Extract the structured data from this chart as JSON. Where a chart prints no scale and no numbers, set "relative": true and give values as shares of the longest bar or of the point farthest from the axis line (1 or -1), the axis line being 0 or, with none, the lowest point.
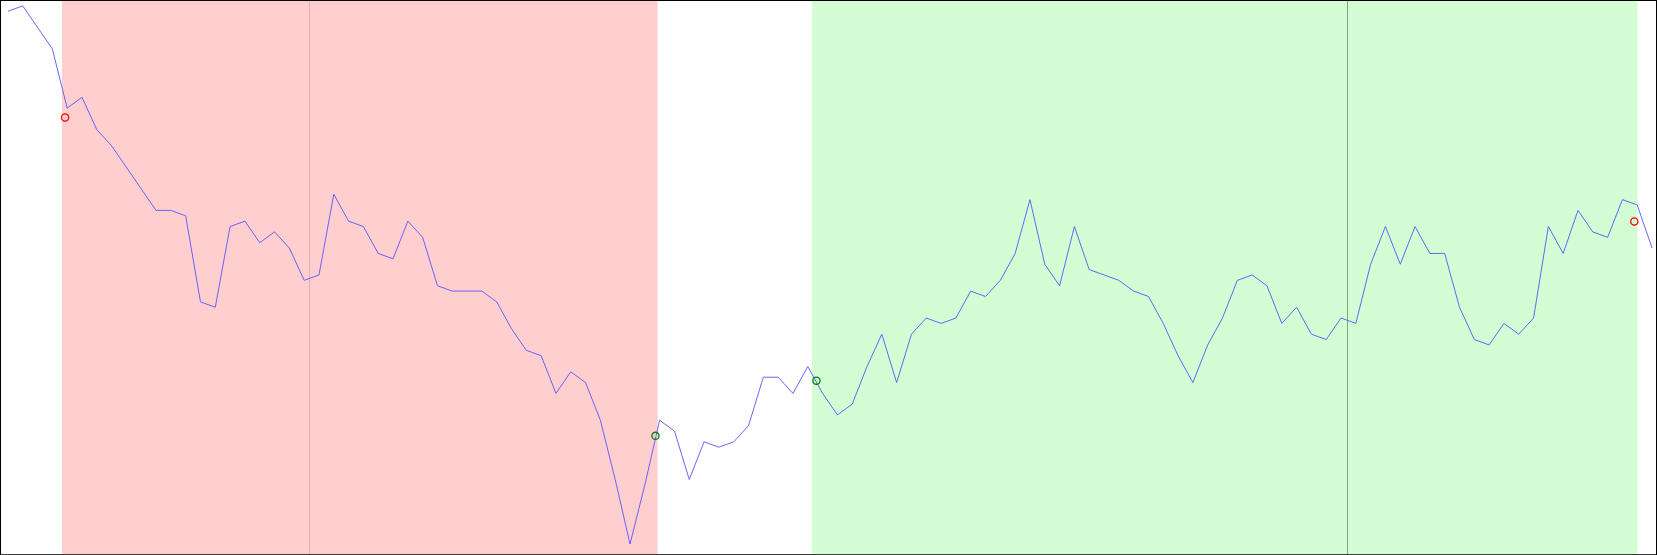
{
  "chart_data": {
    "type": "line",
    "relative": true,
    "categories": [
      null,
      null,
      null,
      null,
      null,
      null,
      null,
      null,
      null,
      null,
      null,
      null,
      null,
      null,
      null,
      null,
      null,
      null,
      null,
      null,
      null,
      null,
      null,
      null,
      null,
      null,
      null,
      null,
      null,
      null,
      null,
      null,
      null,
      null,
      null,
      null,
      null,
      null,
      null,
      null,
      null,
      null,
      null,
      null,
      null,
      null,
      null,
      null,
      null,
      null,
      null,
      null,
      null,
      null,
      null,
      null,
      null,
      null,
      null,
      null,
      null,
      null,
      null,
      null,
      null,
      null,
      null,
      null,
      null,
      null,
      null,
      null,
      null,
      null,
      null,
      null,
      null,
      null,
      null,
      null,
      null,
      null,
      null,
      null,
      null,
      null,
      null,
      null,
      null,
      null,
      null,
      null,
      null,
      null,
      null,
      null,
      null,
      null,
      null,
      null,
      null,
      null,
      null,
      null,
      null,
      null,
      null,
      null,
      null,
      null,
      null,
      null
    ],
    "series": [
      {
        "color": "#5555ff",
        "values": [
          0.99,
          1.0,
          0.96,
          0.92,
          0.81,
          0.83,
          0.77,
          0.74,
          0.7,
          0.66,
          0.62,
          0.62,
          0.61,
          0.45,
          0.44,
          0.59,
          0.6,
          0.56,
          0.58,
          0.55,
          0.49,
          0.5,
          0.65,
          0.6,
          0.59,
          0.54,
          0.53,
          0.6,
          0.57,
          0.48,
          0.47,
          0.47,
          0.47,
          0.45,
          0.4,
          0.36,
          0.35,
          0.28,
          0.32,
          0.3,
          0.23,
          0.12,
          0.0,
          0.11,
          0.23,
          0.21,
          0.12,
          0.19,
          0.18,
          0.19,
          0.22,
          0.31,
          0.31,
          0.28,
          0.33,
          0.28,
          0.24,
          0.26,
          0.33,
          0.39,
          0.3,
          0.39,
          0.42,
          0.41,
          0.42,
          0.47,
          0.46,
          0.49,
          0.54,
          0.64,
          0.52,
          0.48,
          0.59,
          0.51,
          0.5,
          0.49,
          0.47,
          0.46,
          0.41,
          0.35,
          0.3,
          0.37,
          0.42,
          0.49,
          0.5,
          0.48,
          0.41,
          0.44,
          0.39,
          0.38,
          0.42,
          0.41,
          0.52,
          0.59,
          0.52,
          0.59,
          0.54,
          0.54,
          0.44,
          0.38,
          0.37,
          0.41,
          0.39,
          0.42,
          0.59,
          0.54,
          0.62,
          0.58,
          0.57,
          0.64,
          0.63,
          0.55
        ]
      }
    ],
    "tick_labels": false
  }
}
